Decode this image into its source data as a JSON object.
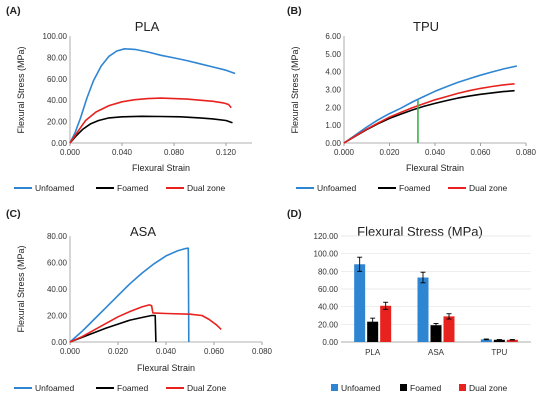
{
  "chart_data": [
    {
      "id": "A",
      "type": "line",
      "panel_label": "(A)",
      "title": "PLA",
      "xlabel": "Flexural Strain",
      "ylabel": "Flexural Stress (MPa)",
      "xlim": [
        0,
        0.14
      ],
      "ylim": [
        0,
        100
      ],
      "xticks": [
        "0.000",
        "0.040",
        "0.080",
        "0.120"
      ],
      "yticks": [
        "0.00",
        "20.00",
        "40.00",
        "60.00",
        "80.00",
        "100.00"
      ],
      "series": [
        {
          "name": "Unfoamed",
          "color": "#2E86D3",
          "points": [
            [
              0,
              0
            ],
            [
              0.004,
              10
            ],
            [
              0.008,
              23
            ],
            [
              0.013,
              42
            ],
            [
              0.018,
              58
            ],
            [
              0.024,
              72
            ],
            [
              0.03,
              81
            ],
            [
              0.036,
              86
            ],
            [
              0.042,
              88
            ],
            [
              0.05,
              87.5
            ],
            [
              0.06,
              85
            ],
            [
              0.07,
              82
            ],
            [
              0.08,
              79.5
            ],
            [
              0.09,
              77
            ],
            [
              0.1,
              74
            ],
            [
              0.11,
              71
            ],
            [
              0.12,
              68
            ],
            [
              0.127,
              65
            ]
          ]
        },
        {
          "name": "Foamed",
          "color": "#000000",
          "points": [
            [
              0,
              0
            ],
            [
              0.005,
              7
            ],
            [
              0.01,
              13
            ],
            [
              0.016,
              18
            ],
            [
              0.022,
              21
            ],
            [
              0.03,
              23.5
            ],
            [
              0.04,
              24.5
            ],
            [
              0.055,
              25
            ],
            [
              0.07,
              24.8
            ],
            [
              0.085,
              24.5
            ],
            [
              0.1,
              23.5
            ],
            [
              0.11,
              22.5
            ],
            [
              0.12,
              21
            ],
            [
              0.125,
              19
            ]
          ]
        },
        {
          "name": "Dual zone",
          "color": "#E8221E",
          "points": [
            [
              0,
              0
            ],
            [
              0.005,
              9
            ],
            [
              0.012,
              21
            ],
            [
              0.02,
              29
            ],
            [
              0.03,
              35
            ],
            [
              0.04,
              38.5
            ],
            [
              0.05,
              40.5
            ],
            [
              0.06,
              41.5
            ],
            [
              0.07,
              42
            ],
            [
              0.08,
              41.5
            ],
            [
              0.09,
              41
            ],
            [
              0.1,
              40
            ],
            [
              0.11,
              39
            ],
            [
              0.118,
              37.5
            ],
            [
              0.122,
              36
            ],
            [
              0.124,
              33
            ]
          ]
        }
      ]
    },
    {
      "id": "B",
      "type": "line",
      "panel_label": "(B)",
      "title": "TPU",
      "xlabel": "Flexural Strain",
      "ylabel": "Flexural Stress (MPa)",
      "xlim": [
        0,
        0.08
      ],
      "ylim": [
        0,
        6
      ],
      "xticks": [
        "0.000",
        "0.020",
        "0.040",
        "0.060",
        "0.080"
      ],
      "yticks": [
        "0.00",
        "1.00",
        "2.00",
        "3.00",
        "4.00",
        "5.00",
        "6.00"
      ],
      "series": [
        {
          "name": "Unfoamed",
          "color": "#2E86D3",
          "points": [
            [
              0,
              0
            ],
            [
              0.005,
              0.45
            ],
            [
              0.01,
              0.9
            ],
            [
              0.015,
              1.3
            ],
            [
              0.02,
              1.65
            ],
            [
              0.025,
              1.95
            ],
            [
              0.03,
              2.3
            ],
            [
              0.035,
              2.6
            ],
            [
              0.04,
              2.9
            ],
            [
              0.045,
              3.15
            ],
            [
              0.05,
              3.4
            ],
            [
              0.055,
              3.6
            ],
            [
              0.06,
              3.8
            ],
            [
              0.065,
              3.98
            ],
            [
              0.07,
              4.15
            ],
            [
              0.076,
              4.32
            ]
          ]
        },
        {
          "name": "Foamed",
          "color": "#000000",
          "points": [
            [
              0,
              0
            ],
            [
              0.005,
              0.38
            ],
            [
              0.01,
              0.75
            ],
            [
              0.015,
              1.08
            ],
            [
              0.02,
              1.38
            ],
            [
              0.025,
              1.62
            ],
            [
              0.03,
              1.85
            ],
            [
              0.035,
              2.05
            ],
            [
              0.04,
              2.22
            ],
            [
              0.045,
              2.38
            ],
            [
              0.05,
              2.52
            ],
            [
              0.055,
              2.63
            ],
            [
              0.06,
              2.73
            ],
            [
              0.065,
              2.81
            ],
            [
              0.07,
              2.88
            ],
            [
              0.075,
              2.93
            ]
          ]
        },
        {
          "name": "Dual zone",
          "color": "#E8221E",
          "points": [
            [
              0,
              0
            ],
            [
              0.005,
              0.4
            ],
            [
              0.01,
              0.78
            ],
            [
              0.015,
              1.12
            ],
            [
              0.02,
              1.45
            ],
            [
              0.025,
              1.72
            ],
            [
              0.03,
              1.98
            ],
            [
              0.035,
              2.2
            ],
            [
              0.04,
              2.42
            ],
            [
              0.045,
              2.6
            ],
            [
              0.05,
              2.78
            ],
            [
              0.055,
              2.93
            ],
            [
              0.06,
              3.06
            ],
            [
              0.065,
              3.17
            ],
            [
              0.07,
              3.26
            ],
            [
              0.075,
              3.32
            ]
          ]
        }
      ],
      "marker_line": {
        "color": "#3CB24A",
        "x": 0.0325,
        "y_from": 0,
        "y_to": 2.4
      }
    },
    {
      "id": "C",
      "type": "line",
      "panel_label": "(C)",
      "title": "ASA",
      "xlabel": "Flexural Strain",
      "ylabel": "Flexural Stress (MPa)",
      "xlim": [
        0,
        0.08
      ],
      "ylim": [
        0,
        80
      ],
      "xticks": [
        "0.000",
        "0.020",
        "0.040",
        "0.060",
        "0.080"
      ],
      "yticks": [
        "0.00",
        "20.00",
        "40.00",
        "60.00",
        "80.00"
      ],
      "series": [
        {
          "name": "Unfoamed",
          "color": "#2E86D3",
          "points": [
            [
              0,
              0
            ],
            [
              0.005,
              8
            ],
            [
              0.01,
              17
            ],
            [
              0.015,
              26
            ],
            [
              0.02,
              35
            ],
            [
              0.025,
              44
            ],
            [
              0.03,
              52
            ],
            [
              0.035,
              59
            ],
            [
              0.04,
              65
            ],
            [
              0.045,
              69
            ],
            [
              0.048,
              70.5
            ],
            [
              0.0493,
              70.8
            ],
            [
              0.0495,
              0
            ]
          ]
        },
        {
          "name": "Foamed",
          "color": "#000000",
          "points": [
            [
              0,
              0
            ],
            [
              0.005,
              3.5
            ],
            [
              0.01,
              7
            ],
            [
              0.015,
              10.5
            ],
            [
              0.02,
              13.5
            ],
            [
              0.025,
              16.5
            ],
            [
              0.03,
              18.5
            ],
            [
              0.034,
              20
            ],
            [
              0.0355,
              20
            ],
            [
              0.0358,
              0
            ]
          ]
        },
        {
          "name": "Dual Zone",
          "color": "#E8221E",
          "points": [
            [
              0,
              0
            ],
            [
              0.005,
              4
            ],
            [
              0.01,
              9
            ],
            [
              0.015,
              14
            ],
            [
              0.02,
              19
            ],
            [
              0.025,
              23
            ],
            [
              0.03,
              26.5
            ],
            [
              0.033,
              28
            ],
            [
              0.034,
              27.5
            ],
            [
              0.0345,
              22
            ],
            [
              0.04,
              21.5
            ],
            [
              0.05,
              21
            ],
            [
              0.055,
              20
            ],
            [
              0.058,
              17
            ],
            [
              0.061,
              13
            ],
            [
              0.063,
              9.5
            ]
          ]
        }
      ]
    },
    {
      "id": "D",
      "type": "bar",
      "panel_label": "(D)",
      "title": "Flexural Stress (MPa)",
      "categories": [
        "PLA",
        "ASA",
        "TPU"
      ],
      "ylim": [
        0,
        120
      ],
      "yticks": [
        "0.00",
        "20.00",
        "40.00",
        "60.00",
        "80.00",
        "100.00",
        "120.00"
      ],
      "series": [
        {
          "name": "Unfoamed",
          "color": "#2E86D3",
          "values": [
            88,
            73,
            3
          ],
          "errors": [
            8,
            6,
            0.4
          ]
        },
        {
          "name": "Foamed",
          "color": "#000000",
          "values": [
            23,
            19,
            2.5
          ],
          "errors": [
            4,
            2,
            0.3
          ]
        },
        {
          "name": "Dual zone",
          "color": "#E8221E",
          "values": [
            41,
            29,
            2.5
          ],
          "errors": [
            4,
            3,
            0.3
          ]
        }
      ]
    }
  ]
}
